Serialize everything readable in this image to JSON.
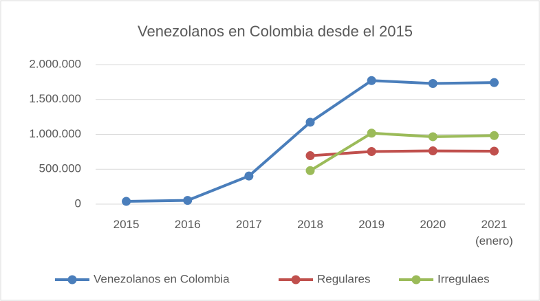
{
  "chart_data": {
    "type": "line",
    "title": "Venezolanos en Colombia desde el 2015",
    "categories": [
      "2015",
      "2016",
      "2017",
      "2018",
      "2019",
      "2020",
      "2021 (enero)"
    ],
    "series": [
      {
        "name": "Venezolanos en Colombia",
        "color": "#4a7ebb",
        "values": [
          39000,
          53000,
          403000,
          1174000,
          1771000,
          1729000,
          1742000
        ]
      },
      {
        "name": "Regulares",
        "color": "#c0504d",
        "values": [
          null,
          null,
          null,
          694000,
          754000,
          763000,
          759000
        ]
      },
      {
        "name": "Irregulaes",
        "color": "#9bbb59",
        "values": [
          null,
          null,
          null,
          480000,
          1017000,
          966000,
          983000
        ]
      }
    ],
    "ylim": [
      0,
      2000000
    ],
    "yticks": [
      0,
      {
        "value": 500000,
        "label": "500.000"
      },
      {
        "value": 1000000,
        "label": "1.000.000"
      },
      {
        "value": 1500000,
        "label": "1.500.000"
      },
      {
        "value": 2000000,
        "label": "2.000.000"
      }
    ],
    "grid": true,
    "legend": "bottom"
  }
}
